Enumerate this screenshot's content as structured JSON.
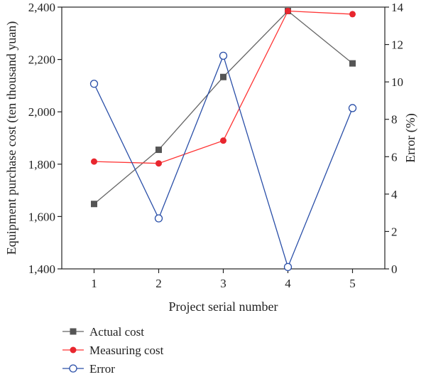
{
  "chart_data": {
    "type": "line",
    "title": "",
    "xlabel": "Project serial number",
    "ylabel_left": "Equipment purchase cost (ten thousand yuan)",
    "ylabel_right": "Error (%)",
    "x": [
      1,
      2,
      3,
      4,
      5
    ],
    "x_tick_labels": [
      "1",
      "2",
      "3",
      "4",
      "5"
    ],
    "ylim_left": [
      1400,
      2400
    ],
    "yticks_left": [
      1400,
      1600,
      1800,
      2000,
      2200,
      2400
    ],
    "ytick_labels_left": [
      "1,400",
      "1,600",
      "1,800",
      "2,000",
      "2,200",
      "2,400"
    ],
    "ylim_right": [
      0,
      14
    ],
    "yticks_right": [
      0,
      2,
      4,
      6,
      8,
      10,
      12,
      14
    ],
    "ytick_labels_right": [
      "0",
      "2",
      "4",
      "6",
      "8",
      "10",
      "12",
      "14"
    ],
    "grid": false,
    "legend_position": "bottom-left",
    "series": [
      {
        "name": "Actual cost",
        "axis": "left",
        "marker": "square",
        "color": "#666666",
        "marker_color": "#555555",
        "values": [
          1648,
          1855,
          2133,
          2385,
          2185
        ]
      },
      {
        "name": "Measuring cost",
        "axis": "left",
        "marker": "circle-filled",
        "color": "#ff3333",
        "marker_color": "#e8262e",
        "values": [
          1810,
          1803,
          1890,
          2385,
          2373
        ]
      },
      {
        "name": "Error",
        "axis": "right",
        "marker": "circle-open",
        "color": "#2a4fa8",
        "marker_color": "#2a4fa8",
        "values": [
          9.9,
          2.7,
          11.4,
          0.1,
          8.6
        ]
      }
    ]
  }
}
